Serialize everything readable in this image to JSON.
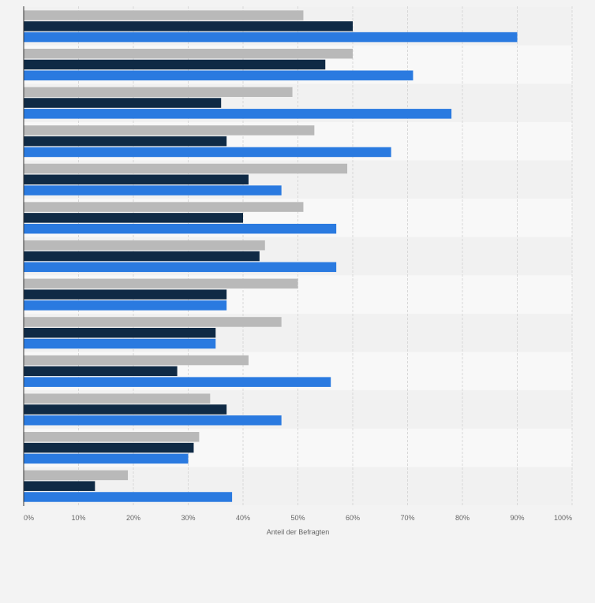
{
  "chart_data": {
    "type": "bar",
    "orientation": "horizontal",
    "title": "",
    "xlabel": "Anteil der Befragten",
    "ylabel": "",
    "xlim": [
      0,
      100
    ],
    "x_ticks": [
      "0%",
      "10%",
      "20%",
      "30%",
      "40%",
      "50%",
      "60%",
      "70%",
      "80%",
      "90%",
      "100%"
    ],
    "grid": true,
    "legend": "none",
    "categories": [
      "",
      "",
      "",
      "",
      "",
      "",
      "",
      "",
      "",
      "",
      "",
      "",
      ""
    ],
    "series": [
      {
        "color": "#b9b9b9",
        "values": [
          51,
          60,
          49,
          53,
          59,
          51,
          44,
          50,
          47,
          41,
          34,
          32,
          19
        ]
      },
      {
        "color": "#0f2a45",
        "values": [
          60,
          55,
          36,
          37,
          41,
          40,
          43,
          37,
          35,
          28,
          37,
          31,
          13
        ]
      },
      {
        "color": "#2a7ae0",
        "values": [
          90,
          71,
          78,
          67,
          47,
          57,
          57,
          37,
          35,
          56,
          47,
          30,
          38
        ]
      }
    ]
  }
}
